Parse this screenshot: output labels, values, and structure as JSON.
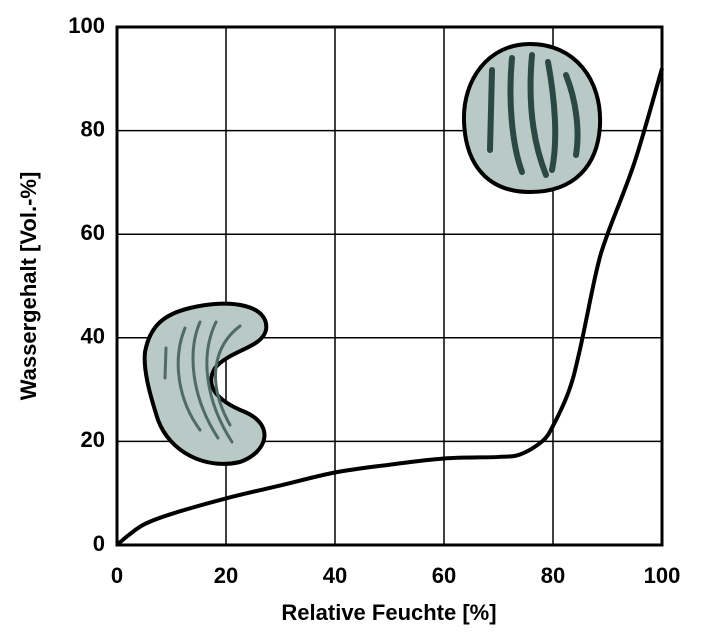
{
  "chart_data": {
    "type": "line",
    "xlabel": "Relative Feuchte [%]",
    "ylabel": "Wassergehalt [Vol.-%]",
    "x": [
      0,
      2,
      5,
      10,
      20,
      30,
      40,
      50,
      60,
      70,
      74,
      78,
      80,
      83,
      85,
      88,
      90,
      95,
      100
    ],
    "values": [
      0,
      1.8,
      4,
      6,
      9,
      11.5,
      14,
      15.5,
      16.7,
      17,
      17.5,
      20,
      23,
      30,
      38,
      53,
      60,
      74,
      92
    ],
    "color": "#000000",
    "xlim": [
      0,
      100
    ],
    "ylim": [
      0,
      100
    ],
    "xticks": [
      0,
      20,
      40,
      60,
      80,
      100
    ],
    "yticks": [
      0,
      20,
      40,
      60,
      80,
      100
    ],
    "grid": true
  }
}
